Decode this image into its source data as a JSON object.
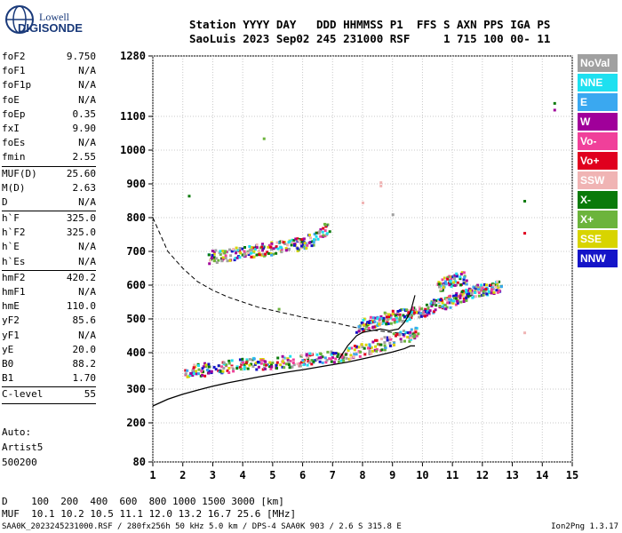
{
  "logo": {
    "line1": "Lowell",
    "line2": "DIGISONDE"
  },
  "header": {
    "line1": "Station YYYY DAY   DDD HHMMSS P1  FFS S AXN PPS IGA PS",
    "line2": "SaoLuis 2023 Sep02 245 231000 RSF     1 715 100 00- 11"
  },
  "params": [
    {
      "name": "foF2",
      "value": "9.750"
    },
    {
      "name": "foF1",
      "value": "N/A"
    },
    {
      "name": "foF1p",
      "value": "N/A"
    },
    {
      "name": "foE",
      "value": "N/A"
    },
    {
      "name": "foEp",
      "value": "0.35"
    },
    {
      "name": "fxI",
      "value": "9.90"
    },
    {
      "name": "foEs",
      "value": "N/A"
    },
    {
      "name": "fmin",
      "value": "2.55",
      "sep": true
    },
    {
      "name": "MUF(D)",
      "value": "25.60"
    },
    {
      "name": "M(D)",
      "value": "2.63"
    },
    {
      "name": "D",
      "value": "N/A",
      "sep": true
    },
    {
      "name": "h`F",
      "value": "325.0"
    },
    {
      "name": "h`F2",
      "value": "325.0"
    },
    {
      "name": "h`E",
      "value": "N/A"
    },
    {
      "name": "h`Es",
      "value": "N/A",
      "sep": true
    },
    {
      "name": "hmF2",
      "value": "420.2"
    },
    {
      "name": "hmF1",
      "value": "N/A"
    },
    {
      "name": "hmE",
      "value": "110.0"
    },
    {
      "name": "yF2",
      "value": "85.6"
    },
    {
      "name": "yF1",
      "value": "N/A"
    },
    {
      "name": "yE",
      "value": "20.0"
    },
    {
      "name": "B0",
      "value": "88.2"
    },
    {
      "name": "B1",
      "value": "1.70",
      "sep": true
    },
    {
      "name": "C-level",
      "value": "55",
      "sep": true
    }
  ],
  "auto": {
    "label": "Auto:",
    "artist": "Artist5",
    "version": "500200"
  },
  "legend": [
    {
      "label": "NoVal",
      "color": "#a0a0a0"
    },
    {
      "label": "NNE",
      "color": "#1ee0f0"
    },
    {
      "label": "E",
      "color": "#3aa8f0"
    },
    {
      "label": "W",
      "color": "#a0009a"
    },
    {
      "label": "Vo-",
      "color": "#f0409a"
    },
    {
      "label": "Vo+",
      "color": "#e0001e"
    },
    {
      "label": "SSW",
      "color": "#f0b4b4"
    },
    {
      "label": "X-",
      "color": "#0a7a0a"
    },
    {
      "label": "X+",
      "color": "#6cb43c"
    },
    {
      "label": "SSE",
      "color": "#d8d400"
    },
    {
      "label": "NNW",
      "color": "#1414c8"
    }
  ],
  "muf_table": {
    "d_line": "D    100  200  400  600  800 1000 1500 3000 [km]",
    "muf_line": "MUF  10.1 10.2 10.5 11.1 12.0 13.2 16.7 25.6 [MHz]"
  },
  "footer": "SAA0K_2023245231000.RSF / 280fx256h 50 kHz 5.0 km / DPS-4 SAA0K 903 / 2.6 S 315.8 E",
  "version_tag": "Ion2Png 1.3.17",
  "chart_data": {
    "type": "scatter",
    "x_ticks": [
      1,
      2,
      3,
      4,
      5,
      6,
      7,
      8,
      9,
      10,
      11,
      12,
      13,
      14,
      15
    ],
    "y_ticks": [
      80,
      200,
      300,
      400,
      500,
      600,
      700,
      800,
      900,
      1000,
      1100,
      1280
    ],
    "xlim": [
      1,
      15
    ],
    "ylim": [
      80,
      1280
    ],
    "grid": true,
    "legend_position": "right",
    "profile_curve": {
      "x": [
        1.0,
        1.5,
        2.0,
        2.5,
        3.0,
        3.5,
        4.0,
        4.5,
        5.0,
        5.5,
        6.0,
        6.5,
        7.0,
        7.5,
        8.0,
        8.5,
        9.0,
        9.4,
        9.6,
        9.75
      ],
      "y": [
        250,
        270,
        285,
        297,
        308,
        317,
        325,
        333,
        340,
        347,
        353,
        360,
        367,
        374,
        383,
        392,
        402,
        412,
        420,
        420
      ]
    },
    "trace_curve": {
      "x": [
        7.2,
        7.5,
        7.8,
        8.0,
        8.3,
        8.6,
        8.9,
        9.2,
        9.4,
        9.6,
        9.75
      ],
      "y": [
        380,
        420,
        450,
        460,
        465,
        470,
        465,
        470,
        490,
        520,
        570
      ]
    },
    "muf_curve": {
      "x": [
        1.0,
        1.5,
        2.0,
        2.5,
        3.0,
        3.5,
        4.0,
        4.5,
        5.0,
        5.5,
        6.0,
        6.5,
        7.0,
        7.5,
        8.0,
        8.5,
        9.0,
        9.5,
        9.75
      ],
      "y": [
        800,
        700,
        650,
        610,
        585,
        565,
        550,
        535,
        525,
        515,
        505,
        497,
        490,
        480,
        470,
        465,
        460,
        455,
        450
      ]
    },
    "echo_clusters": [
      {
        "x": [
          2.0,
          2.5,
          3.0,
          3.5,
          4.0,
          4.5,
          5.0,
          5.5,
          6.0,
          6.5,
          7.0,
          7.5,
          8.0,
          8.5,
          9.0,
          9.5,
          9.8
        ],
        "y": [
          350,
          355,
          360,
          365,
          370,
          372,
          375,
          378,
          382,
          387,
          392,
          400,
          412,
          425,
          440,
          455,
          470
        ]
      },
      {
        "x": [
          2.8,
          3.2,
          3.6,
          4.0,
          4.4,
          4.8,
          5.2,
          5.6,
          6.0,
          6.4,
          6.8
        ],
        "y": [
          685,
          690,
          695,
          700,
          705,
          710,
          715,
          720,
          728,
          745,
          770
        ]
      },
      {
        "x": [
          7.8,
          8.1,
          8.4,
          8.7,
          9.0,
          9.3,
          9.6,
          9.9,
          10.2,
          10.5,
          10.8,
          11.1,
          11.4,
          11.7,
          12.0,
          12.3,
          12.6
        ],
        "y": [
          480,
          490,
          500,
          505,
          510,
          515,
          520,
          525,
          535,
          545,
          555,
          565,
          575,
          585,
          590,
          595,
          600
        ]
      },
      {
        "x": [
          10.5,
          10.8,
          11.1,
          11.4
        ],
        "y": [
          600,
          610,
          620,
          625
        ]
      }
    ],
    "isolated_points": [
      {
        "x": 2.2,
        "y": 865
      },
      {
        "x": 4.7,
        "y": 1035
      },
      {
        "x": 8.6,
        "y": 905
      },
      {
        "x": 8.6,
        "y": 895
      },
      {
        "x": 8.0,
        "y": 845
      },
      {
        "x": 9.0,
        "y": 810
      },
      {
        "x": 13.4,
        "y": 850
      },
      {
        "x": 13.4,
        "y": 755
      },
      {
        "x": 13.4,
        "y": 460
      },
      {
        "x": 14.4,
        "y": 1140
      },
      {
        "x": 14.4,
        "y": 1120
      },
      {
        "x": 5.2,
        "y": 530
      }
    ]
  }
}
